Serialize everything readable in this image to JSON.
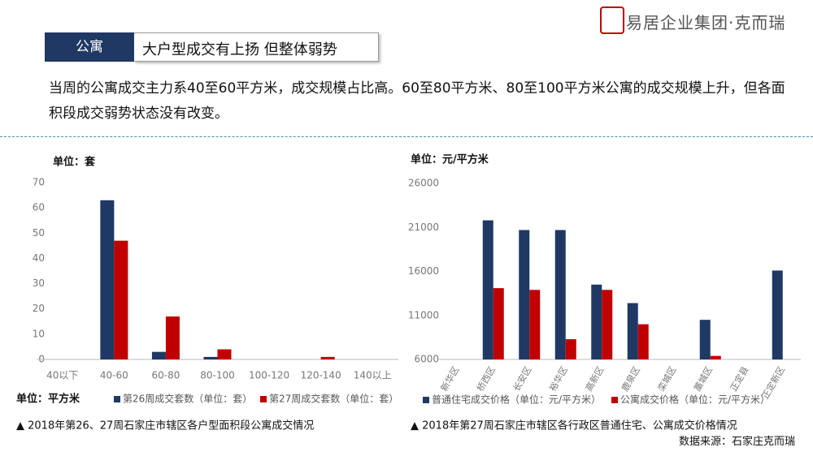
{
  "header": {
    "logo": "易居企业集团·克而瑞",
    "tag": "公寓",
    "title": "大户型成交有上扬 但整体弱势",
    "body": "当周的公寓成交主力系40至60平方米，成交规模占比高。60至80平方米、80至100平方米公寓的成交规模上升，但各面积段成交弱势状态没有改变。"
  },
  "source": "数据来源：石家庄克而瑞",
  "chart_data": [
    {
      "type": "bar",
      "unit_label": "单位：套",
      "x_unit_label": "单位：平方米",
      "caption": "▲ 2018年第26、27周石家庄市辖区各户型面积段公寓成交情况",
      "categories": [
        "40以下",
        "40-60",
        "60-80",
        "80-100",
        "100-120",
        "120-140",
        "140以上"
      ],
      "series": [
        {
          "name": "第26周成交套数（单位：套）",
          "color": "#1f3864",
          "values": [
            0,
            63,
            3,
            1,
            0,
            0,
            0
          ]
        },
        {
          "name": "第27周成交套数（单位：套）",
          "color": "#c00000",
          "values": [
            0,
            47,
            17,
            4,
            0,
            1,
            0
          ]
        }
      ],
      "ylim": [
        0,
        70
      ],
      "yticks": [
        0,
        10,
        20,
        30,
        40,
        50,
        60,
        70
      ]
    },
    {
      "type": "bar",
      "unit_label": "单位：元/平方米",
      "caption": "▲ 2018年第27周石家庄市辖区各行政区普通住宅、公寓成交价格情况",
      "categories": [
        "新华区",
        "桥西区",
        "长安区",
        "裕华区",
        "高新区",
        "鹿泉区",
        "栾城区",
        "藁城区",
        "正定县",
        "正定新区"
      ],
      "series": [
        {
          "name": "普通住宅成交价格（单位：元/平方米）",
          "color": "#1f3864",
          "values": [
            null,
            21800,
            20700,
            20700,
            14500,
            12400,
            null,
            10500,
            null,
            16100
          ]
        },
        {
          "name": "公寓成交价格（单位：元/平方米）",
          "color": "#c00000",
          "values": [
            null,
            14100,
            13900,
            8300,
            13900,
            10000,
            null,
            6400,
            null,
            null
          ]
        }
      ],
      "ylim": [
        6000,
        26000
      ],
      "yticks": [
        6000,
        11000,
        16000,
        21000,
        26000
      ]
    }
  ]
}
